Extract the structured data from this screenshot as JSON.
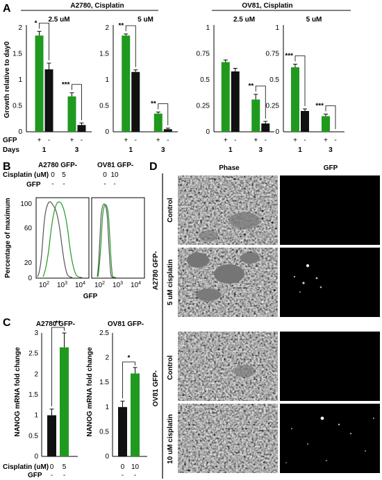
{
  "colors": {
    "green": "#1f9a1f",
    "black": "#111111",
    "gray": "#555555",
    "error": "#000000"
  },
  "panel_a": {
    "label": "A",
    "headers": [
      {
        "text": "A2780, Cisplatin"
      },
      {
        "text": "OV81, Cisplatin"
      }
    ],
    "ylabel": "Growth relative to day0",
    "row_labels": [
      "GFP",
      "Days"
    ],
    "charts": [
      {
        "title": "2.5 uM",
        "ticks": [
          "0",
          "0.5",
          "1",
          "1.5",
          "2"
        ],
        "ymax": 2,
        "groups": [
          {
            "day": "1",
            "gfp": [
              "+",
              "-"
            ],
            "values": [
              1.85,
              1.2
            ],
            "errors": [
              0.08,
              0.12
            ],
            "sig": "*"
          },
          {
            "day": "3",
            "gfp": [
              "+",
              "-"
            ],
            "values": [
              0.68,
              0.13
            ],
            "errors": [
              0.07,
              0.04
            ],
            "sig": "***"
          }
        ]
      },
      {
        "title": "5 uM",
        "ticks": [
          "0",
          "0.5",
          "1",
          "1.5",
          "2"
        ],
        "ymax": 2,
        "groups": [
          {
            "day": "1",
            "gfp": [
              "+",
              "-"
            ],
            "values": [
              1.85,
              1.15
            ],
            "errors": [
              0.03,
              0.04
            ],
            "sig": "**"
          },
          {
            "day": "3",
            "gfp": [
              "+",
              "-"
            ],
            "values": [
              0.35,
              0.05
            ],
            "errors": [
              0.03,
              0.02
            ],
            "sig": "**"
          }
        ]
      },
      {
        "title": "2.5 uM",
        "ticks": [
          "0",
          "0.25",
          "0.5",
          "0.75",
          "1"
        ],
        "ymax": 1,
        "groups": [
          {
            "day": "1",
            "gfp": [
              "+",
              "-"
            ],
            "values": [
              0.67,
              0.58
            ],
            "errors": [
              0.02,
              0.03
            ],
            "sig": ""
          },
          {
            "day": "3",
            "gfp": [
              "+",
              "-"
            ],
            "values": [
              0.31,
              0.08
            ],
            "errors": [
              0.05,
              0.02
            ],
            "sig": "**"
          }
        ]
      },
      {
        "title": "5 uM",
        "ticks": [
          "0",
          "0.25",
          "0.5",
          "0.75",
          "1"
        ],
        "ymax": 1,
        "groups": [
          {
            "day": "1",
            "gfp": [
              "+",
              "-"
            ],
            "values": [
              0.62,
              0.2
            ],
            "errors": [
              0.03,
              0.02
            ],
            "sig": "***"
          },
          {
            "day": "3",
            "gfp": [
              "+",
              "-"
            ],
            "values": [
              0.15,
              0
            ],
            "errors": [
              0.02,
              0
            ],
            "sig": "***"
          }
        ]
      }
    ]
  },
  "panel_b": {
    "label": "B",
    "row_labels": [
      "Cisplatin (uM)",
      "GFP"
    ],
    "ylabel": "Percentage of maximum",
    "xlabel": "GFP",
    "yticks": [
      "0",
      "20",
      "60",
      "100"
    ],
    "xticks": [
      "10",
      "10",
      "10"
    ],
    "xtick_exponents": [
      "2",
      "3",
      "4"
    ],
    "plots": [
      {
        "header": "A2780 GFP-",
        "cisplatin": [
          "0",
          "5"
        ],
        "gfp": [
          "-",
          "-"
        ]
      },
      {
        "header": "OV81 GFP-",
        "cisplatin": [
          "0",
          "10"
        ],
        "gfp": [
          "-",
          "-"
        ]
      }
    ]
  },
  "panel_c": {
    "label": "C",
    "ylabel": "NANOG mRNA fold change",
    "row_labels": [
      "Cisplatin (uM)",
      "GFP"
    ],
    "charts": [
      {
        "title": "A2780 GFP-",
        "ticks": [
          "0",
          "0.5",
          "1",
          "1.5",
          "2",
          "2.5",
          "3"
        ],
        "ymax": 3,
        "categories": [
          "0",
          "5"
        ],
        "gfp": [
          "-",
          "-"
        ],
        "values": [
          1.0,
          2.65
        ],
        "errors": [
          0.15,
          0.35
        ],
        "sig": "**"
      },
      {
        "title": "OV81 GFP-",
        "ticks": [
          "0",
          "0.5",
          "1",
          "1.5",
          "2",
          "2.5"
        ],
        "ymax": 2.5,
        "categories": [
          "0",
          "10"
        ],
        "gfp": [
          "-",
          "-"
        ],
        "values": [
          1.0,
          1.68
        ],
        "errors": [
          0.12,
          0.12
        ],
        "sig": "*"
      }
    ]
  },
  "panel_d": {
    "label": "D",
    "columns": [
      "Phase",
      "GFP"
    ],
    "groups": [
      {
        "cell_label": "A2780 GFP-",
        "rows": [
          "Control",
          "5 uM cisplatin"
        ]
      },
      {
        "cell_label": "OV81 GFP-",
        "rows": [
          "Control",
          "10 uM cisplatin"
        ]
      }
    ]
  }
}
